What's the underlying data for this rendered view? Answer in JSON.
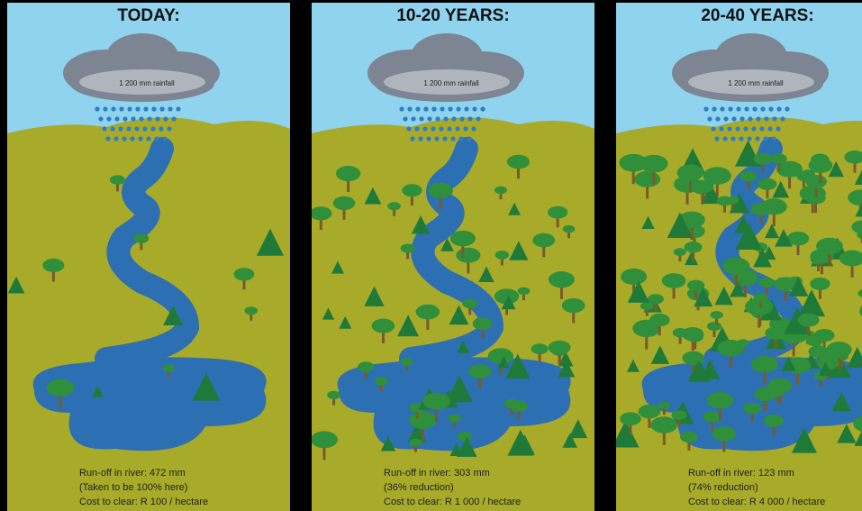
{
  "panels": [
    {
      "title": "TODAY:",
      "cloud_label": "1 200 mm rainfall",
      "lines": [
        "Run-off in river: 472 mm",
        "(Taken to be 100% here)",
        "Cost to clear: R 100 / hectare"
      ]
    },
    {
      "title": "10-20 YEARS:",
      "cloud_label": "1 200 mm rainfall",
      "lines": [
        "Run-off in river: 303 mm",
        "(36% reduction)",
        "Cost to clear: R 1 000 / hectare"
      ]
    },
    {
      "title": "20-40 YEARS:",
      "cloud_label": "1 200 mm rainfall",
      "lines": [
        "Run-off in river: 123 mm",
        "(74% reduction)",
        "Cost to clear: R 4 000 / hectare"
      ]
    }
  ]
}
